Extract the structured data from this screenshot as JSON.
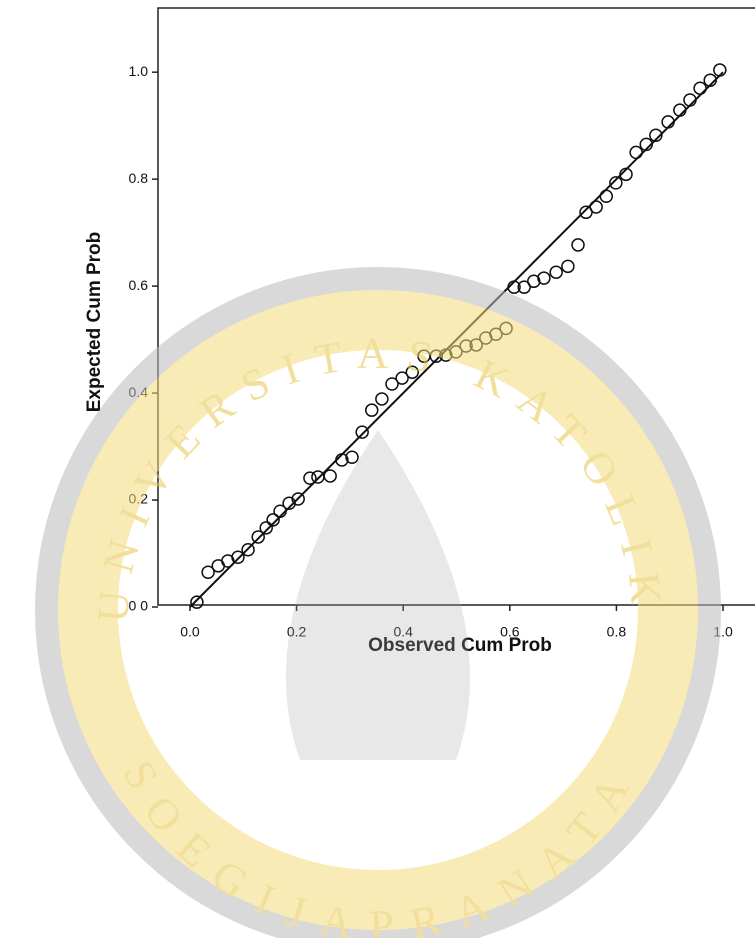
{
  "chart_data": {
    "type": "scatter",
    "xlabel": "Observed Cum Prob",
    "ylabel": "Expected Cum Prob",
    "x": [
      0.013,
      0.034,
      0.053,
      0.071,
      0.09,
      0.109,
      0.128,
      0.143,
      0.156,
      0.169,
      0.186,
      0.203,
      0.225,
      0.24,
      0.263,
      0.285,
      0.304,
      0.323,
      0.341,
      0.36,
      0.379,
      0.398,
      0.417,
      0.439,
      0.462,
      0.48,
      0.499,
      0.518,
      0.537,
      0.555,
      0.574,
      0.593,
      0.608,
      0.627,
      0.645,
      0.664,
      0.687,
      0.709,
      0.728,
      0.743,
      0.762,
      0.781,
      0.799,
      0.818,
      0.837,
      0.856,
      0.874,
      0.897,
      0.919,
      0.938,
      0.957,
      0.976,
      0.994
    ],
    "values": [
      0.009,
      0.065,
      0.077,
      0.086,
      0.093,
      0.107,
      0.131,
      0.148,
      0.163,
      0.179,
      0.194,
      0.202,
      0.241,
      0.243,
      0.245,
      0.275,
      0.28,
      0.327,
      0.368,
      0.389,
      0.417,
      0.428,
      0.439,
      0.469,
      0.469,
      0.471,
      0.477,
      0.488,
      0.49,
      0.503,
      0.51,
      0.521,
      0.598,
      0.598,
      0.609,
      0.615,
      0.626,
      0.637,
      0.677,
      0.738,
      0.748,
      0.768,
      0.793,
      0.809,
      0.85,
      0.865,
      0.882,
      0.907,
      0.929,
      0.948,
      0.97,
      0.985,
      1.004
    ],
    "color": "#111111",
    "reference_line": {
      "x": [
        0,
        1
      ],
      "y": [
        0,
        1
      ]
    },
    "xlim": [
      -0.06,
      1.06
    ],
    "ylim": [
      0,
      1.12
    ],
    "xticks": [
      {
        "value": 0,
        "label": "0.0"
      },
      0.2,
      0.4,
      0.6,
      0.8,
      {
        "value": 1,
        "label": "1.0"
      }
    ],
    "yticks": [
      {
        "value": 0,
        "label": "0 0"
      },
      0.2,
      0.4,
      0.6,
      0.8,
      {
        "value": 1,
        "label": "1.0"
      }
    ],
    "grid": false
  },
  "watermark": {
    "top": "UNIVERSITAS KATOLIK",
    "bottom": "SOEGIJAPRANATA"
  }
}
